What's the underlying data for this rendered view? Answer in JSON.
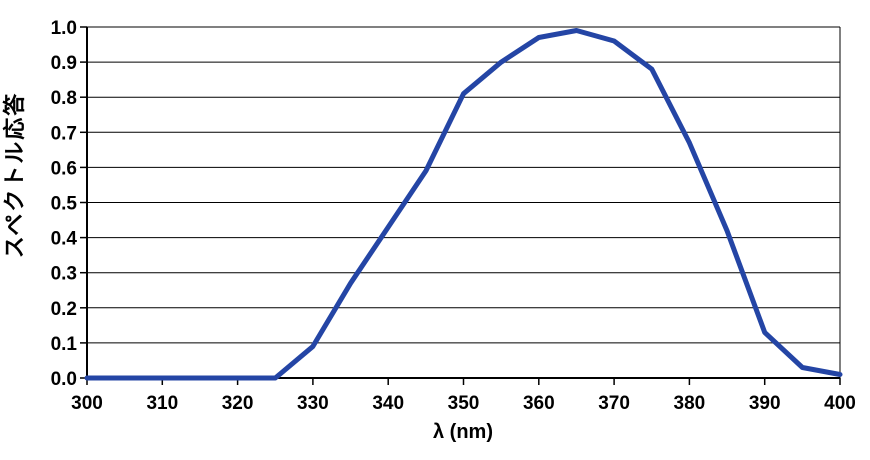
{
  "page": {
    "background": "#FFFFFF"
  },
  "chart_data": {
    "type": "line",
    "title": "",
    "xlabel": "λ (nm)",
    "ylabel": "スペクトル応答",
    "xlim": [
      300,
      400
    ],
    "ylim": [
      0.0,
      1.0
    ],
    "x": [
      300,
      305,
      310,
      315,
      320,
      325,
      330,
      335,
      340,
      345,
      350,
      355,
      360,
      365,
      370,
      375,
      380,
      385,
      390,
      395,
      400
    ],
    "y": [
      0.0,
      0.0,
      0.0,
      0.0,
      0.0,
      0.0,
      0.09,
      0.27,
      0.43,
      0.59,
      0.81,
      0.9,
      0.97,
      0.99,
      0.96,
      0.88,
      0.67,
      0.42,
      0.13,
      0.03,
      0.01
    ],
    "xticks": {
      "values": [
        300,
        310,
        320,
        330,
        340,
        350,
        360,
        370,
        380,
        390,
        400
      ],
      "labels": [
        "300",
        "310",
        "320",
        "330",
        "340",
        "350",
        "360",
        "370",
        "380",
        "390",
        "400"
      ]
    },
    "yticks": {
      "values": [
        0.0,
        0.1,
        0.2,
        0.3,
        0.4,
        0.5,
        0.6,
        0.7,
        0.8,
        0.9,
        1.0
      ],
      "labels": [
        "0.0",
        "0.1",
        "0.2",
        "0.3",
        "0.4",
        "0.5",
        "0.6",
        "0.7",
        "0.8",
        "0.9",
        "1.0"
      ]
    },
    "grid": "horizontal-only",
    "legend": "none",
    "line_color": "#2445A5",
    "line_width": 5,
    "gridline_color": "#000000",
    "axis_color": "#000000",
    "text_color": "#000000"
  }
}
